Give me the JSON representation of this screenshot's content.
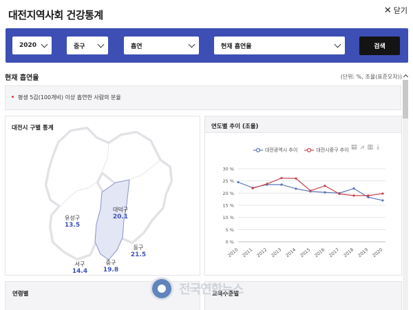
{
  "header": {
    "title": "대전지역사회 건강통계",
    "close_label": "닫기"
  },
  "filters": {
    "year": "2020",
    "district": "중구",
    "category": "흡연",
    "indicator": "현재 흡연율",
    "search_label": "검색"
  },
  "section": {
    "title": "현재 흡연율",
    "unit": "(단위: %, 조율(표준오차))",
    "definition": "평생 5갑(100개비) 이상 흡연한 사람의 분율"
  },
  "map_panel": {
    "title": "대전시 구별 통계",
    "districts": [
      {
        "name": "유성구",
        "value": "13.5"
      },
      {
        "name": "대덕구",
        "value": "20.1"
      },
      {
        "name": "동구",
        "value": "21.5"
      },
      {
        "name": "서구",
        "value": "14.4"
      },
      {
        "name": "중구",
        "value": "19.8"
      }
    ],
    "highlight_color": "#e3e6f5"
  },
  "chart_panel": {
    "title": "연도별 추이 (조율)"
  },
  "chart_data": {
    "type": "line",
    "x": [
      "2010",
      "2011",
      "2012",
      "2013",
      "2014",
      "2015",
      "2016",
      "2017",
      "2018",
      "2019",
      "2020"
    ],
    "series": [
      {
        "name": "대전광역시 추이",
        "color": "#5b74b8",
        "values": [
          24.5,
          22.2,
          23.5,
          23.5,
          21.8,
          20.7,
          20.3,
          20.0,
          21.9,
          18.3,
          17.0
        ]
      },
      {
        "name": "대전시중구 추이",
        "color": "#c8414b",
        "values": [
          null,
          22.0,
          23.8,
          26.2,
          26.0,
          21.0,
          23.0,
          19.7,
          19.0,
          19.0,
          19.8
        ]
      }
    ],
    "y_ticks": [
      "0 %",
      "5 %",
      "10 %",
      "15 %",
      "20 %",
      "25 %",
      "30 %"
    ],
    "ylim": [
      0,
      30
    ],
    "grid": true,
    "legend": "top"
  },
  "bottom": {
    "left_title": "연령별",
    "right_title": "교육수준별"
  },
  "watermark": {
    "text": "전국연합뉴스"
  }
}
